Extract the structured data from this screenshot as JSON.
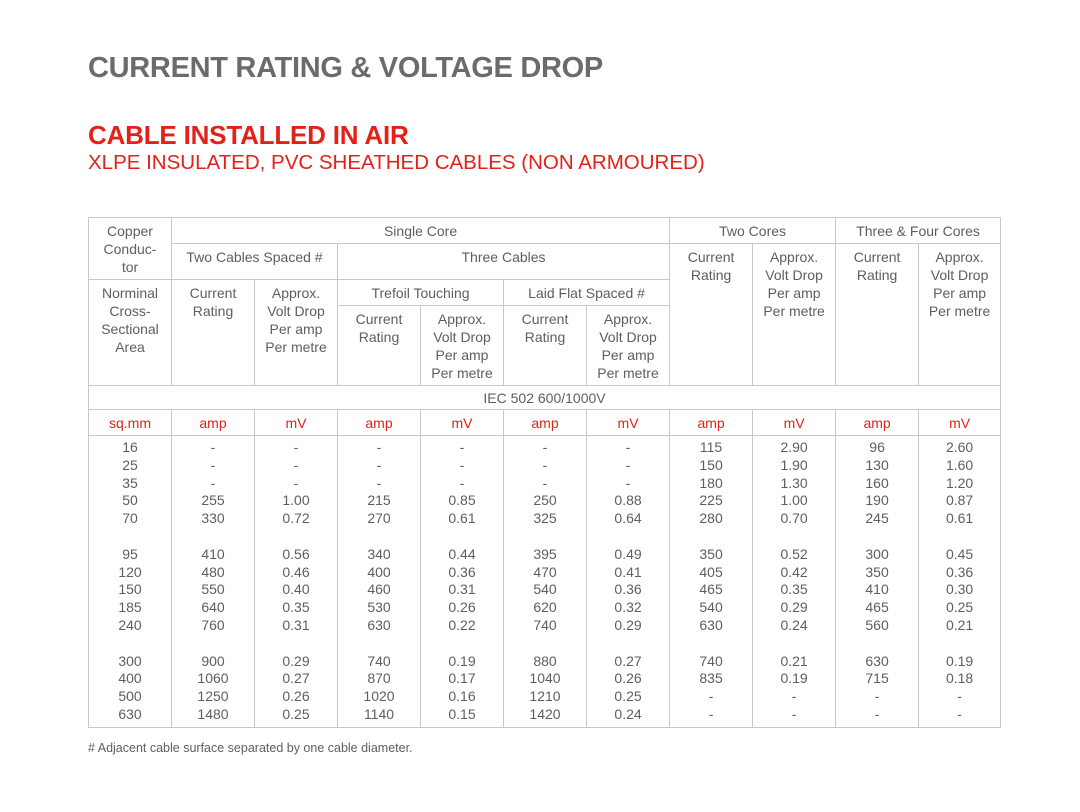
{
  "page": {
    "title": "CURRENT RATING & VOLTAGE DROP",
    "section_title": "CABLE INSTALLED IN AIR",
    "subtitle": "XLPE INSULATED, PVC SHEATHED CABLES (NON ARMOURED)",
    "footnote": "# Adjacent cable surface separated by one cable diameter."
  },
  "table": {
    "header": {
      "copper_conductor": [
        "Copper",
        "Conduc-",
        "tor"
      ],
      "single_core": "Single Core",
      "two_cores": "Two Cores",
      "three_four_cores": "Three & Four Cores",
      "two_cables_spaced": "Two Cables Spaced #",
      "three_cables": "Three Cables",
      "current_rating": [
        "Current",
        "Rating"
      ],
      "approx_volt_drop": [
        "Approx.",
        "Volt Drop",
        "Per amp",
        "Per metre"
      ],
      "nominal_area": [
        "Norminal",
        "Cross-",
        "Sectional",
        "Area"
      ],
      "trefoil_touching": "Trefoil Touching",
      "laid_flat_spaced": "Laid Flat Spaced #",
      "standard": "IEC 502 600/1000V"
    },
    "units": [
      "sq.mm",
      "amp",
      "mV",
      "amp",
      "mV",
      "amp",
      "mV",
      "amp",
      "mV",
      "amp",
      "mV"
    ],
    "groups": [
      {
        "area": [
          "16",
          "25",
          "35",
          "50",
          "70"
        ],
        "two_spaced_amp": [
          "-",
          "-",
          "-",
          "255",
          "330"
        ],
        "two_spaced_mv": [
          "-",
          "-",
          "-",
          "1.00",
          "0.72"
        ],
        "trefoil_amp": [
          "-",
          "-",
          "-",
          "215",
          "270"
        ],
        "trefoil_mv": [
          "-",
          "-",
          "-",
          "0.85",
          "0.61"
        ],
        "flat_amp": [
          "-",
          "-",
          "-",
          "250",
          "325"
        ],
        "flat_mv": [
          "-",
          "-",
          "-",
          "0.88",
          "0.64"
        ],
        "two_core_amp": [
          "115",
          "150",
          "180",
          "225",
          "280"
        ],
        "two_core_mv": [
          "2.90",
          "1.90",
          "1.30",
          "1.00",
          "0.70"
        ],
        "three_four_amp": [
          "96",
          "130",
          "160",
          "190",
          "245"
        ],
        "three_four_mv": [
          "2.60",
          "1.60",
          "1.20",
          "0.87",
          "0.61"
        ]
      },
      {
        "area": [
          "95",
          "120",
          "150",
          "185",
          "240"
        ],
        "two_spaced_amp": [
          "410",
          "480",
          "550",
          "640",
          "760"
        ],
        "two_spaced_mv": [
          "0.56",
          "0.46",
          "0.40",
          "0.35",
          "0.31"
        ],
        "trefoil_amp": [
          "340",
          "400",
          "460",
          "530",
          "630"
        ],
        "trefoil_mv": [
          "0.44",
          "0.36",
          "0.31",
          "0.26",
          "0.22"
        ],
        "flat_amp": [
          "395",
          "470",
          "540",
          "620",
          "740"
        ],
        "flat_mv": [
          "0.49",
          "0.41",
          "0.36",
          "0.32",
          "0.29"
        ],
        "two_core_amp": [
          "350",
          "405",
          "465",
          "540",
          "630"
        ],
        "two_core_mv": [
          "0.52",
          "0.42",
          "0.35",
          "0.29",
          "0.24"
        ],
        "three_four_amp": [
          "300",
          "350",
          "410",
          "465",
          "560"
        ],
        "three_four_mv": [
          "0.45",
          "0.36",
          "0.30",
          "0.25",
          "0.21"
        ]
      },
      {
        "area": [
          "300",
          "400",
          "500",
          "630"
        ],
        "two_spaced_amp": [
          "900",
          "1060",
          "1250",
          "1480"
        ],
        "two_spaced_mv": [
          "0.29",
          "0.27",
          "0.26",
          "0.25"
        ],
        "trefoil_amp": [
          "740",
          "870",
          "1020",
          "1140"
        ],
        "trefoil_mv": [
          "0.19",
          "0.17",
          "0.16",
          "0.15"
        ],
        "flat_amp": [
          "880",
          "1040",
          "1210",
          "1420"
        ],
        "flat_mv": [
          "0.27",
          "0.26",
          "0.25",
          "0.24"
        ],
        "two_core_amp": [
          "740",
          "835",
          "-",
          "-"
        ],
        "two_core_mv": [
          "0.21",
          "0.19",
          "-",
          "-"
        ],
        "three_four_amp": [
          "630",
          "715",
          "-",
          "-"
        ],
        "three_four_mv": [
          "0.19",
          "0.18",
          "-",
          "-"
        ]
      }
    ]
  },
  "colors": {
    "accent_red": "#e32119",
    "title_gray": "#6b6b6b",
    "text_gray": "#5e5e5e",
    "border_gray": "#c9c9c9"
  }
}
